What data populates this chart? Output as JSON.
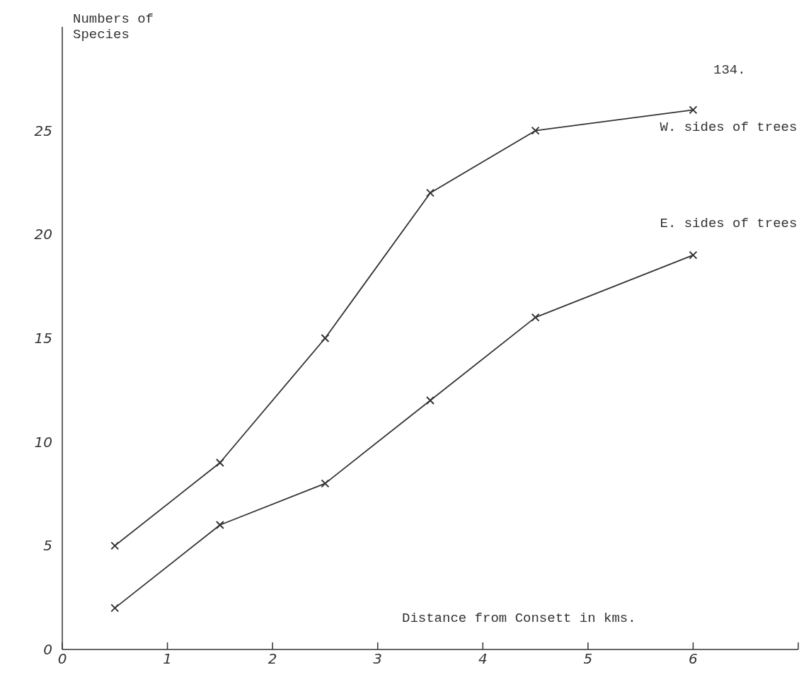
{
  "chart_data": {
    "type": "line",
    "xlabel": "Distance from Consett in kms.",
    "ylabel": "Numbers of Species",
    "annotations": [
      "134."
    ],
    "series": [
      {
        "name": "W. sides of trees",
        "color": "#333333",
        "x": [
          0.5,
          1.5,
          2.5,
          3.5,
          4.5,
          6
        ],
        "values": [
          5,
          9,
          15,
          22,
          25,
          26
        ]
      },
      {
        "name": "E. sides of trees",
        "color": "#333333",
        "x": [
          0.5,
          1.5,
          2.5,
          3.5,
          4.5,
          6
        ],
        "values": [
          2,
          6,
          8,
          12,
          16,
          19
        ]
      }
    ],
    "xlim": [
      0,
      7
    ],
    "xticks": [
      0,
      1,
      2,
      3,
      4,
      5,
      6,
      {
        "value": 7,
        "label": null
      }
    ],
    "ylim": [
      0,
      30
    ],
    "yticks": [
      0,
      5,
      10,
      15,
      20,
      25
    ],
    "grid": false,
    "legend": false,
    "marker": "cross",
    "line_style": "solid"
  }
}
